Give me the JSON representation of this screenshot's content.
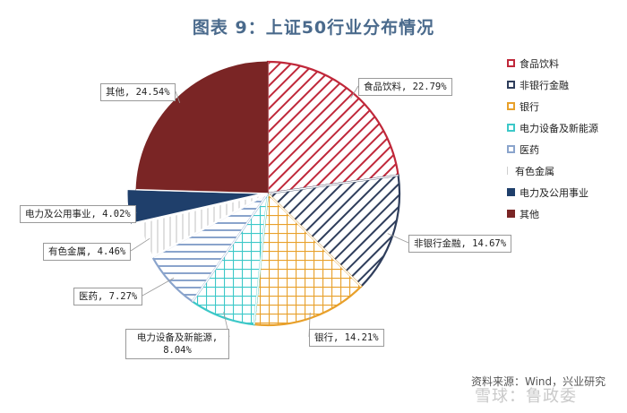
{
  "chart_data": {
    "type": "pie",
    "title": "图表 9：上证50行业分布情况",
    "legend_position": "right",
    "slices": [
      {
        "name": "食品饮料",
        "value": 22.79,
        "label": "食品饮料, 22.79%",
        "color": "#c0283a",
        "fill": "hatch"
      },
      {
        "name": "非银行金融",
        "value": 14.67,
        "label": "非银行金融, 14.67%",
        "color": "#2f3e5c",
        "fill": "hatch"
      },
      {
        "name": "银行",
        "value": 14.21,
        "label": "银行, 14.21%",
        "color": "#e8a02a",
        "fill": "grid"
      },
      {
        "name": "电力设备及新能源",
        "value": 8.04,
        "label": "电力设备及新能源, 8.04%",
        "color": "#3cc8c8",
        "fill": "grid"
      },
      {
        "name": "医药",
        "value": 7.27,
        "label": "医药, 7.27%",
        "color": "#8aa4cc",
        "fill": "horizontal"
      },
      {
        "name": "有色金属",
        "value": 4.46,
        "label": "有色金属, 4.46%",
        "color": "#d9d9d9",
        "fill": "vertical"
      },
      {
        "name": "电力及公用事业",
        "value": 4.02,
        "label": "电力及公用事业, 4.02%",
        "color": "#1f3f6b",
        "fill": "solid"
      },
      {
        "name": "其他",
        "value": 24.54,
        "label": "其他, 24.54%",
        "color": "#7a2525",
        "fill": "solid"
      }
    ]
  },
  "legend": [
    "食品饮料",
    "非银行金融",
    "银行",
    "电力设备及新能源",
    "医药",
    "有色金属",
    "电力及公用事业",
    "其他"
  ],
  "source": "资料来源：Wind，兴业研究",
  "watermark": "雪球：鲁政委"
}
